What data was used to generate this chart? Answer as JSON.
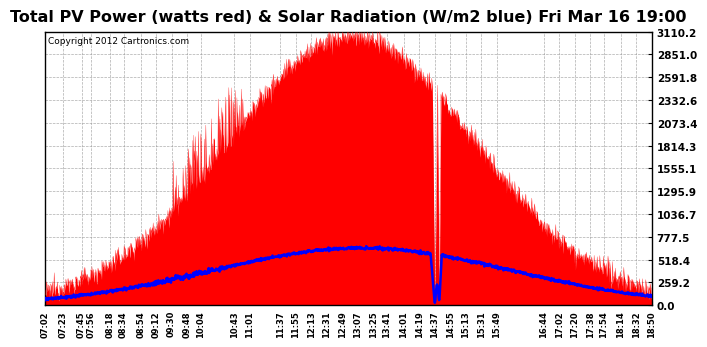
{
  "title": "Total PV Power (watts red) & Solar Radiation (W/m2 blue) Fri Mar 16 19:00",
  "copyright": "Copyright 2012 Cartronics.com",
  "yticks": [
    0.0,
    259.2,
    518.4,
    777.5,
    1036.7,
    1295.9,
    1555.1,
    1814.3,
    2073.4,
    2332.6,
    2591.8,
    2851.0,
    3110.2
  ],
  "ymax": 3110.2,
  "pv_color": "#FF0000",
  "radiation_color": "#0000FF",
  "bg_color": "#FFFFFF",
  "grid_color": "#999999",
  "title_fontsize": 11.5,
  "copyright_fontsize": 6.5,
  "tick_fontsize": 7.5,
  "x_tick_fontsize": 6.0
}
